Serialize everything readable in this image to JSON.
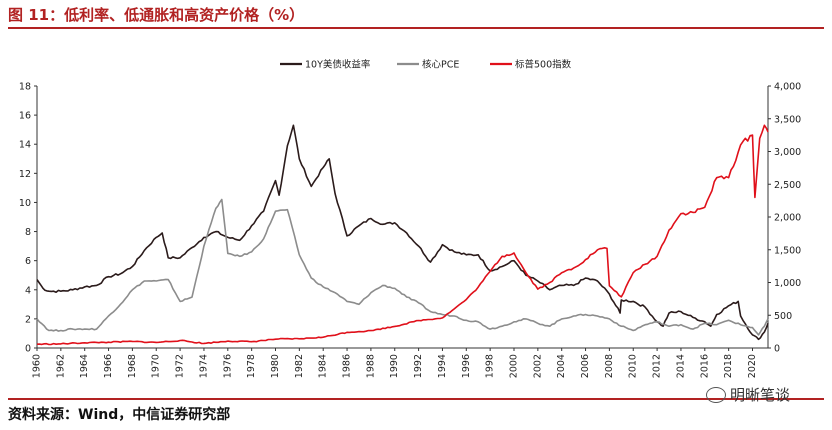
{
  "title": "图 11：低利率、低通胀和高资产价格（%）",
  "source": "资料来源：Wind，中信证券研究部",
  "watermark": "明晰笔谈",
  "colors": {
    "title": "#b22222",
    "yield": "#2b1b1b",
    "pce": "#8c8c8c",
    "sp500": "#e0101a"
  },
  "chart_data": {
    "type": "line",
    "legend": [
      "10Y美债收益率",
      "核心PCE",
      "标普500指数"
    ],
    "legend_position": "top-center",
    "grid": false,
    "x_ticks": [
      "1960",
      "1962",
      "1964",
      "1966",
      "1968",
      "1970",
      "1972",
      "1974",
      "1976",
      "1978",
      "1980",
      "1982",
      "1984",
      "1986",
      "1988",
      "1990",
      "1992",
      "1994",
      "1996",
      "1998",
      "2000",
      "2002",
      "2004",
      "2006",
      "2008",
      "2010",
      "2012",
      "2014",
      "2016",
      "2018",
      "2020"
    ],
    "xlim": [
      1960,
      2021.3
    ],
    "y_left": {
      "ticks": [
        "0",
        "2",
        "4",
        "6",
        "8",
        "10",
        "12",
        "14",
        "16",
        "18"
      ],
      "lim": [
        0,
        18
      ]
    },
    "y_right": {
      "ticks": [
        "0",
        "500",
        "1,000",
        "1,500",
        "2,000",
        "2,500",
        "3,000",
        "3,500",
        "4,000"
      ],
      "lim": [
        0,
        4000
      ]
    },
    "series": [
      {
        "name": "10Y美债收益率",
        "axis": "left",
        "x": [
          1960,
          1960.5,
          1961,
          1962,
          1963,
          1964,
          1965,
          1966,
          1967,
          1968,
          1969,
          1970,
          1970.5,
          1971,
          1972,
          1973,
          1974,
          1975,
          1976,
          1977,
          1978,
          1979,
          1980,
          1980.3,
          1981,
          1981.5,
          1982,
          1983,
          1984,
          1984.5,
          1985,
          1986,
          1987,
          1988,
          1989,
          1990,
          1991,
          1992,
          1993,
          1994,
          1995,
          1996,
          1997,
          1998,
          1999,
          2000,
          2001,
          2002,
          2003,
          2004,
          2005,
          2006,
          2007,
          2008,
          2008.9,
          2009,
          2010,
          2011,
          2012,
          2012.5,
          2013,
          2014,
          2015,
          2016,
          2016.5,
          2017,
          2018,
          2018.8,
          2019,
          2020,
          2020.5,
          2021,
          2021.3
        ],
        "values": [
          4.7,
          4.1,
          3.9,
          3.9,
          4.0,
          4.2,
          4.3,
          4.9,
          5.1,
          5.6,
          6.7,
          7.6,
          7.9,
          6.2,
          6.2,
          6.9,
          7.6,
          8.0,
          7.6,
          7.4,
          8.4,
          9.4,
          11.5,
          10.5,
          13.9,
          15.3,
          13.0,
          11.1,
          12.4,
          13.0,
          10.6,
          7.7,
          8.4,
          8.9,
          8.5,
          8.6,
          7.9,
          7.0,
          5.9,
          7.1,
          6.6,
          6.4,
          6.4,
          5.3,
          5.6,
          6.0,
          5.0,
          4.6,
          4.0,
          4.3,
          4.3,
          4.8,
          4.6,
          3.7,
          2.4,
          3.3,
          3.2,
          2.8,
          1.8,
          1.5,
          2.4,
          2.5,
          2.1,
          1.8,
          1.5,
          2.3,
          2.9,
          3.2,
          2.2,
          0.9,
          0.6,
          1.1,
          1.7
        ]
      },
      {
        "name": "核心PCE",
        "axis": "left",
        "x": [
          1960,
          1961,
          1962,
          1963,
          1964,
          1965,
          1966,
          1967,
          1968,
          1969,
          1970,
          1971,
          1972,
          1973,
          1974,
          1975,
          1975.5,
          1976,
          1977,
          1978,
          1979,
          1980,
          1981,
          1982,
          1983,
          1984,
          1985,
          1986,
          1987,
          1988,
          1989,
          1990,
          1991,
          1992,
          1993,
          1994,
          1995,
          1996,
          1997,
          1998,
          1999,
          2000,
          2001,
          2002,
          2003,
          2004,
          2005,
          2006,
          2007,
          2008,
          2009,
          2010,
          2011,
          2012,
          2013,
          2014,
          2015,
          2016,
          2017,
          2018,
          2019,
          2020,
          2020.5,
          2021,
          2021.3
        ],
        "values": [
          2.0,
          1.2,
          1.2,
          1.3,
          1.3,
          1.3,
          2.2,
          3.0,
          4.0,
          4.6,
          4.6,
          4.7,
          3.2,
          3.5,
          7.0,
          9.6,
          10.2,
          6.5,
          6.3,
          6.6,
          7.5,
          9.4,
          9.5,
          6.4,
          4.8,
          4.2,
          3.8,
          3.2,
          3.0,
          3.8,
          4.3,
          4.1,
          3.5,
          3.1,
          2.5,
          2.3,
          2.2,
          1.9,
          1.8,
          1.3,
          1.5,
          1.8,
          2.0,
          1.7,
          1.5,
          2.0,
          2.2,
          2.3,
          2.2,
          2.0,
          1.5,
          1.2,
          1.6,
          1.8,
          1.5,
          1.6,
          1.3,
          1.7,
          1.6,
          1.9,
          1.6,
          1.4,
          0.9,
          1.5,
          2.0
        ]
      },
      {
        "name": "标普500指数",
        "axis": "right",
        "x": [
          1960,
          1962,
          1964,
          1966,
          1968,
          1970,
          1972,
          1974,
          1976,
          1978,
          1980,
          1982,
          1984,
          1986,
          1987,
          1988,
          1990,
          1992,
          1994,
          1995,
          1996,
          1997,
          1998,
          1999,
          2000,
          2001,
          2002,
          2003,
          2004,
          2005,
          2006,
          2007,
          2007.8,
          2008,
          2009,
          2010,
          2011,
          2012,
          2013,
          2014,
          2015,
          2016,
          2017,
          2018,
          2019,
          2020,
          2020.2,
          2020.6,
          2021,
          2021.3
        ],
        "values": [
          58,
          63,
          80,
          88,
          100,
          85,
          115,
          70,
          105,
          96,
          135,
          140,
          165,
          240,
          250,
          265,
          330,
          420,
          460,
          600,
          740,
          930,
          1170,
          1400,
          1450,
          1150,
          900,
          1000,
          1150,
          1220,
          1350,
          1500,
          1520,
          950,
          780,
          1150,
          1280,
          1400,
          1800,
          2050,
          2070,
          2150,
          2600,
          2600,
          3100,
          3250,
          2300,
          3200,
          3400,
          3300
        ]
      }
    ]
  }
}
